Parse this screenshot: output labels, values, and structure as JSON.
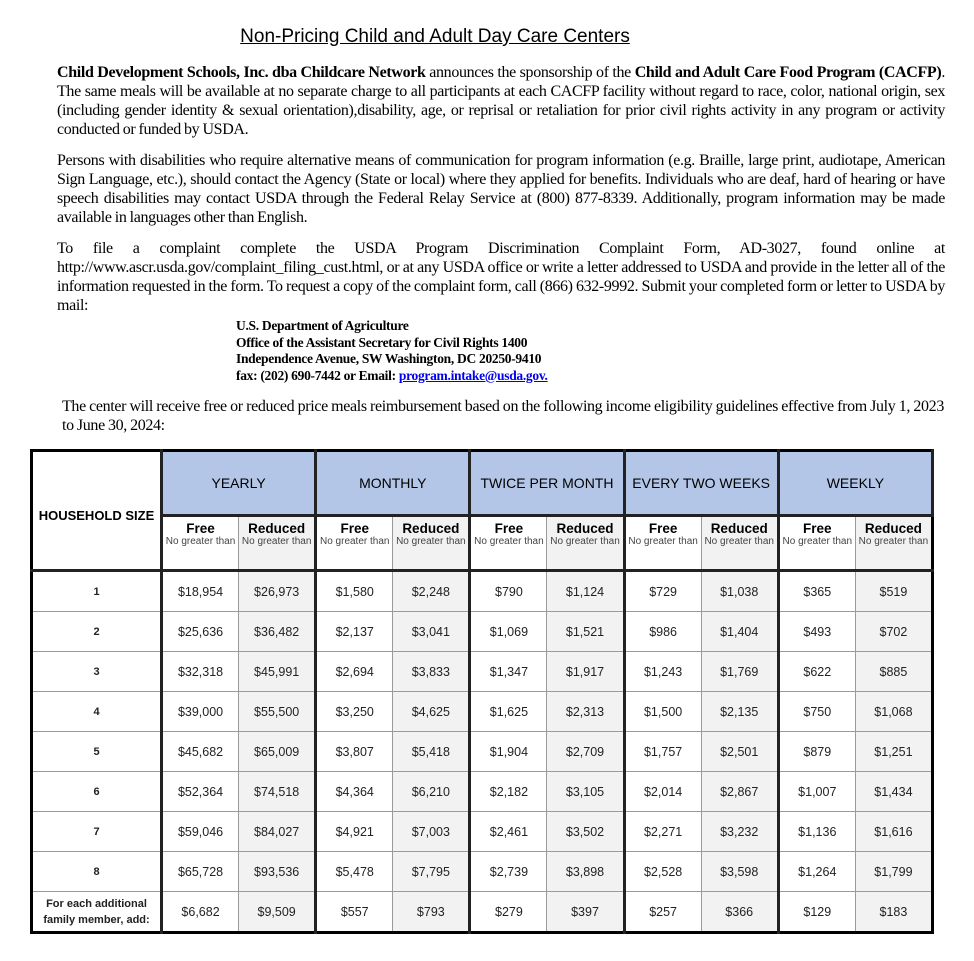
{
  "title": "Non-Pricing Child and Adult Day Care Centers",
  "paragraph1": {
    "bold1": "Child Development Schools, Inc. dba Childcare Network",
    "text1": " announces the sponsorship of the ",
    "bold2": "Child and Adult Care Food Program (CACFP)",
    "text2": ". The same meals will be available at no separate charge to all participants at each CACFP facility without regard to race, color, national origin, sex (including gender identity & sexual orientation),disability, age, or reprisal or retaliation for prior civil rights activity in any program or activity conducted or funded by USDA."
  },
  "paragraph2": "Persons with disabilities who require alternative means of communication for program information (e.g. Braille, large print, audiotape, American Sign Language, etc.), should contact the Agency (State or local) where they applied for benefits. Individuals who are deaf, hard of hearing or have speech disabilities may contact USDA through the Federal Relay Service at (800) 877-8339. Additionally, program information may be made available in languages other than English.",
  "paragraph3": "To file a complaint complete the USDA Program Discrimination Complaint Form, AD-3027, found online at http://www.ascr.usda.gov/complaint_filing_cust.html, or at any USDA office or write a letter addressed to USDA and provide in the letter all of the information requested in the form. To request a copy of the complaint form, call (866) 632-9992. Submit your completed form or letter to USDA by mail:",
  "address": {
    "line1": "U.S. Department of Agriculture",
    "line2": "Office of the Assistant Secretary for Civil Rights 1400",
    "line3": "Independence Avenue, SW Washington, DC 20250-9410",
    "line4_prefix": "fax: (202) 690-7442 or Email: ",
    "email": "program.intake@usda.gov."
  },
  "paragraph4": "The center will receive free or reduced price meals reimbursement based on the following income eligibility guidelines effective from July 1, 2023 to June 30, 2024:",
  "table": {
    "household_header": "HOUSEHOLD SIZE",
    "groups": [
      "YEARLY",
      "MONTHLY",
      "TWICE PER MONTH",
      "EVERY TWO WEEKS",
      "WEEKLY"
    ],
    "sub_free": "Free",
    "sub_reduced": "Reduced",
    "sub_note": "No greater than",
    "rows": [
      {
        "size": "1",
        "values": [
          "$18,954",
          "$26,973",
          "$1,580",
          "$2,248",
          "$790",
          "$1,124",
          "$729",
          "$1,038",
          "$365",
          "$519"
        ]
      },
      {
        "size": "2",
        "values": [
          "$25,636",
          "$36,482",
          "$2,137",
          "$3,041",
          "$1,069",
          "$1,521",
          "$986",
          "$1,404",
          "$493",
          "$702"
        ]
      },
      {
        "size": "3",
        "values": [
          "$32,318",
          "$45,991",
          "$2,694",
          "$3,833",
          "$1,347",
          "$1,917",
          "$1,243",
          "$1,769",
          "$622",
          "$885"
        ]
      },
      {
        "size": "4",
        "values": [
          "$39,000",
          "$55,500",
          "$3,250",
          "$4,625",
          "$1,625",
          "$2,313",
          "$1,500",
          "$2,135",
          "$750",
          "$1,068"
        ]
      },
      {
        "size": "5",
        "values": [
          "$45,682",
          "$65,009",
          "$3,807",
          "$5,418",
          "$1,904",
          "$2,709",
          "$1,757",
          "$2,501",
          "$879",
          "$1,251"
        ]
      },
      {
        "size": "6",
        "values": [
          "$52,364",
          "$74,518",
          "$4,364",
          "$6,210",
          "$2,182",
          "$3,105",
          "$2,014",
          "$2,867",
          "$1,007",
          "$1,434"
        ]
      },
      {
        "size": "7",
        "values": [
          "$59,046",
          "$84,027",
          "$4,921",
          "$7,003",
          "$2,461",
          "$3,502",
          "$2,271",
          "$3,232",
          "$1,136",
          "$1,616"
        ]
      },
      {
        "size": "8",
        "values": [
          "$65,728",
          "$93,536",
          "$5,478",
          "$7,795",
          "$2,739",
          "$3,898",
          "$2,528",
          "$3,598",
          "$1,264",
          "$1,799"
        ]
      },
      {
        "size": "For each additional family member, add:",
        "values": [
          "$6,682",
          "$9,509",
          "$557",
          "$793",
          "$279",
          "$397",
          "$257",
          "$366",
          "$129",
          "$183"
        ]
      }
    ]
  },
  "colors": {
    "header_band": "#b4c6e7",
    "reduced_shade": "#f2f2f2",
    "link": "#0000ee"
  }
}
